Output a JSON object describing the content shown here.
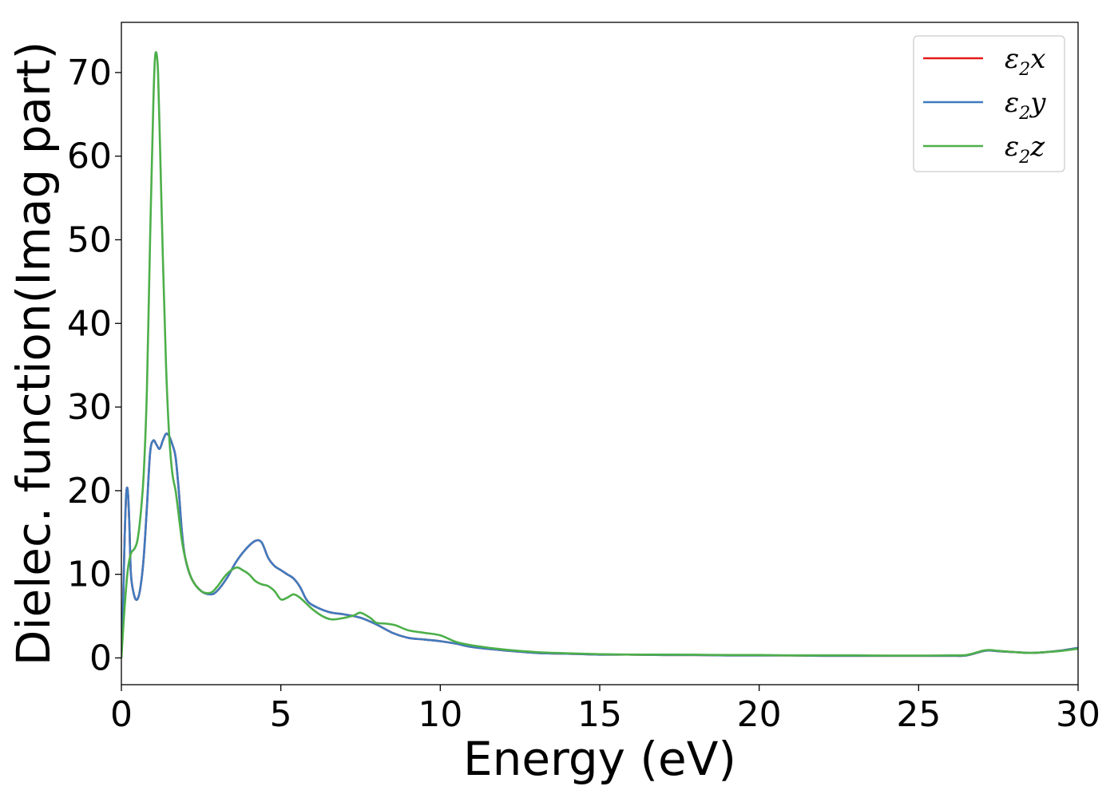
{
  "chart_data": {
    "type": "line",
    "title": "",
    "xlabel": "Energy (eV)",
    "ylabel": "Dielec. function(Imag part)",
    "xlim": [
      0,
      30
    ],
    "ylim": [
      -3.2,
      76
    ],
    "xticks": [
      0,
      5,
      10,
      15,
      20,
      25,
      30
    ],
    "yticks": [
      0,
      10,
      20,
      30,
      40,
      50,
      60,
      70
    ],
    "grid": false,
    "legend_position": "top-right",
    "series": [
      {
        "name": "ε2x",
        "legend_main": "ε",
        "legend_sub": "2",
        "legend_suffix": "x",
        "color": "#e41a1c",
        "x": [
          0,
          0.05,
          0.1,
          0.15,
          0.2,
          0.25,
          0.3,
          0.4,
          0.5,
          0.6,
          0.7,
          0.8,
          0.9,
          1.0,
          1.1,
          1.2,
          1.3,
          1.4,
          1.5,
          1.6,
          1.7,
          1.8,
          1.9,
          2.0,
          2.2,
          2.5,
          2.8,
          3.0,
          3.3,
          3.6,
          3.9,
          4.2,
          4.4,
          4.6,
          4.8,
          5.0,
          5.2,
          5.4,
          5.6,
          5.8,
          6.0,
          6.5,
          7.0,
          7.5,
          8.0,
          8.5,
          9.0,
          9.5,
          10.0,
          10.5,
          11.0,
          12.0,
          13.0,
          14.0,
          15.0,
          16.0,
          17.0,
          18.0,
          19.0,
          20.0,
          21.0,
          22.0,
          23.0,
          24.0,
          25.0,
          26.0,
          26.5,
          27.0,
          27.2,
          27.5,
          28.0,
          28.5,
          29.0,
          29.5,
          30.0
        ],
        "y": [
          0,
          6,
          14,
          19.5,
          20,
          16,
          10,
          7.5,
          7.0,
          8.5,
          12.0,
          18.0,
          24.5,
          26.0,
          25.5,
          25.0,
          26.0,
          26.8,
          26.5,
          25.5,
          24.0,
          20.0,
          15.0,
          12.0,
          9.5,
          8.0,
          7.6,
          8.0,
          9.5,
          11.5,
          13.0,
          14.0,
          13.8,
          12.0,
          11.0,
          10.5,
          10.0,
          9.5,
          8.5,
          7.0,
          6.3,
          5.5,
          5.2,
          4.8,
          4.0,
          3.0,
          2.4,
          2.2,
          2.0,
          1.7,
          1.3,
          0.9,
          0.6,
          0.5,
          0.4,
          0.4,
          0.35,
          0.35,
          0.3,
          0.3,
          0.3,
          0.25,
          0.25,
          0.25,
          0.25,
          0.25,
          0.3,
          0.8,
          0.9,
          0.8,
          0.7,
          0.6,
          0.7,
          0.9,
          1.2
        ]
      },
      {
        "name": "ε2y",
        "legend_main": "ε",
        "legend_sub": "2",
        "legend_suffix": "y",
        "color": "#3f7bbf",
        "x": [
          0,
          0.05,
          0.1,
          0.15,
          0.2,
          0.25,
          0.3,
          0.4,
          0.5,
          0.6,
          0.7,
          0.8,
          0.9,
          1.0,
          1.1,
          1.2,
          1.3,
          1.4,
          1.5,
          1.6,
          1.7,
          1.8,
          1.9,
          2.0,
          2.2,
          2.5,
          2.8,
          3.0,
          3.3,
          3.6,
          3.9,
          4.2,
          4.4,
          4.6,
          4.8,
          5.0,
          5.2,
          5.4,
          5.6,
          5.8,
          6.0,
          6.5,
          7.0,
          7.5,
          8.0,
          8.5,
          9.0,
          9.5,
          10.0,
          10.5,
          11.0,
          12.0,
          13.0,
          14.0,
          15.0,
          16.0,
          17.0,
          18.0,
          19.0,
          20.0,
          21.0,
          22.0,
          23.0,
          24.0,
          25.0,
          26.0,
          26.5,
          27.0,
          27.2,
          27.5,
          28.0,
          28.5,
          29.0,
          29.5,
          30.0
        ],
        "y": [
          0,
          6,
          14,
          19.5,
          20,
          16,
          10,
          7.5,
          7.0,
          8.5,
          12.0,
          18.0,
          24.5,
          26.0,
          25.5,
          25.0,
          26.0,
          26.8,
          26.5,
          25.5,
          24.0,
          20.0,
          15.0,
          12.0,
          9.5,
          8.0,
          7.6,
          8.0,
          9.5,
          11.5,
          13.0,
          14.0,
          13.8,
          12.0,
          11.0,
          10.5,
          10.0,
          9.5,
          8.5,
          7.0,
          6.3,
          5.5,
          5.2,
          4.8,
          4.0,
          3.0,
          2.4,
          2.2,
          2.0,
          1.7,
          1.3,
          0.9,
          0.6,
          0.5,
          0.4,
          0.4,
          0.35,
          0.35,
          0.3,
          0.3,
          0.3,
          0.25,
          0.25,
          0.25,
          0.25,
          0.25,
          0.3,
          0.8,
          0.9,
          0.8,
          0.7,
          0.6,
          0.7,
          0.9,
          1.2
        ]
      },
      {
        "name": "ε2z",
        "legend_main": "ε",
        "legend_sub": "2",
        "legend_suffix": "z",
        "color": "#4daf4a",
        "x": [
          0,
          0.1,
          0.2,
          0.3,
          0.4,
          0.5,
          0.6,
          0.7,
          0.8,
          0.9,
          1.0,
          1.05,
          1.1,
          1.15,
          1.2,
          1.3,
          1.4,
          1.5,
          1.6,
          1.7,
          1.8,
          1.9,
          2.0,
          2.2,
          2.5,
          2.8,
          3.0,
          3.3,
          3.6,
          3.8,
          4.0,
          4.2,
          4.4,
          4.6,
          4.8,
          5.0,
          5.2,
          5.4,
          5.6,
          5.8,
          6.0,
          6.3,
          6.6,
          7.0,
          7.3,
          7.5,
          7.8,
          8.0,
          8.3,
          8.6,
          9.0,
          9.5,
          10.0,
          10.5,
          11.0,
          12.0,
          13.0,
          14.0,
          15.0,
          16.0,
          17.0,
          18.0,
          19.0,
          20.0,
          21.0,
          22.0,
          23.0,
          24.0,
          25.0,
          26.0,
          26.5,
          27.0,
          27.2,
          27.5,
          28.0,
          28.5,
          29.0,
          29.5,
          30.0
        ],
        "y": [
          0,
          6,
          10.5,
          12.5,
          13.0,
          14.0,
          17.0,
          22.0,
          32.0,
          50.0,
          66.0,
          71.5,
          72.3,
          70.0,
          63.0,
          48.0,
          35.0,
          26.5,
          22.0,
          20.0,
          17.0,
          14.0,
          12.0,
          9.5,
          8.0,
          7.8,
          8.5,
          10.0,
          10.8,
          10.5,
          10.0,
          9.2,
          8.8,
          8.6,
          8.0,
          7.0,
          7.2,
          7.6,
          7.2,
          6.5,
          5.8,
          5.0,
          4.6,
          4.8,
          5.1,
          5.4,
          4.8,
          4.2,
          4.1,
          3.9,
          3.3,
          3.0,
          2.7,
          1.9,
          1.5,
          1.0,
          0.7,
          0.55,
          0.45,
          0.4,
          0.4,
          0.38,
          0.35,
          0.35,
          0.3,
          0.3,
          0.3,
          0.28,
          0.28,
          0.3,
          0.35,
          0.85,
          0.95,
          0.85,
          0.7,
          0.6,
          0.7,
          0.85,
          1.1
        ]
      }
    ]
  }
}
